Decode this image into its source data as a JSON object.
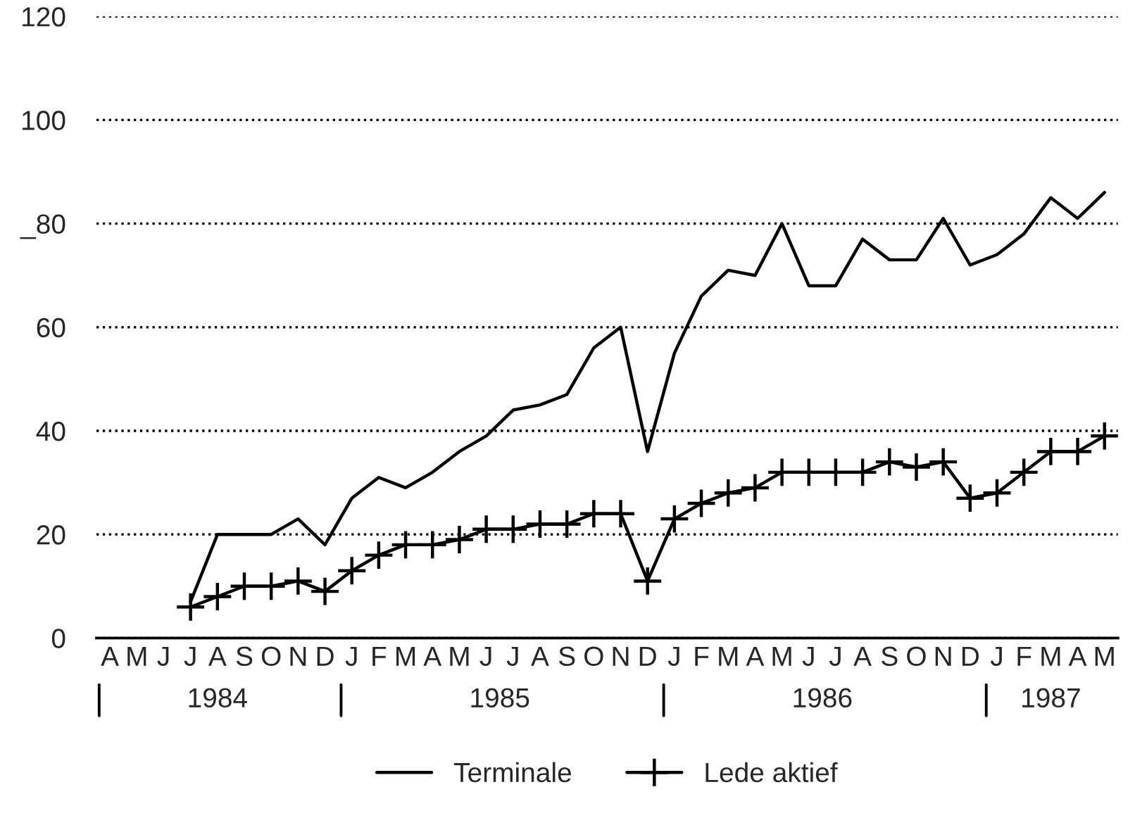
{
  "chart_data": {
    "type": "line",
    "categories": [
      "A",
      "M",
      "J",
      "J",
      "A",
      "S",
      "O",
      "N",
      "D",
      "J",
      "F",
      "M",
      "A",
      "M",
      "J",
      "J",
      "A",
      "S",
      "O",
      "N",
      "D",
      "J",
      "F",
      "M",
      "A",
      "M",
      "J",
      "J",
      "A",
      "S",
      "O",
      "N",
      "D",
      "J",
      "F",
      "M",
      "A",
      "M"
    ],
    "series": [
      {
        "name": "Terminale",
        "color": "#000000",
        "marker": "none",
        "values": [
          null,
          null,
          null,
          7,
          20,
          20,
          20,
          23,
          18,
          27,
          31,
          29,
          32,
          36,
          39,
          44,
          45,
          47,
          56,
          60,
          36,
          55,
          66,
          71,
          70,
          80,
          68,
          68,
          77,
          73,
          73,
          81,
          72,
          74,
          78,
          85,
          81,
          86
        ]
      },
      {
        "name": "Lede aktief",
        "color": "#000000",
        "marker": "cross",
        "values": [
          null,
          null,
          null,
          6,
          8,
          10,
          10,
          11,
          9,
          13,
          16,
          18,
          18,
          19,
          21,
          21,
          22,
          22,
          24,
          24,
          11,
          23,
          26,
          28,
          29,
          32,
          32,
          32,
          32,
          34,
          33,
          34,
          27,
          28,
          32,
          36,
          36,
          39
        ]
      }
    ],
    "ylim": [
      0,
      120
    ],
    "yticks": [
      0,
      20,
      40,
      60,
      {
        "value": 80,
        "label": "_80"
      },
      100,
      120
    ],
    "grid": "y",
    "legend": "bottom",
    "line_style": "solid",
    "annotations": [
      "1984",
      "1985",
      "1986",
      "1987"
    ]
  }
}
